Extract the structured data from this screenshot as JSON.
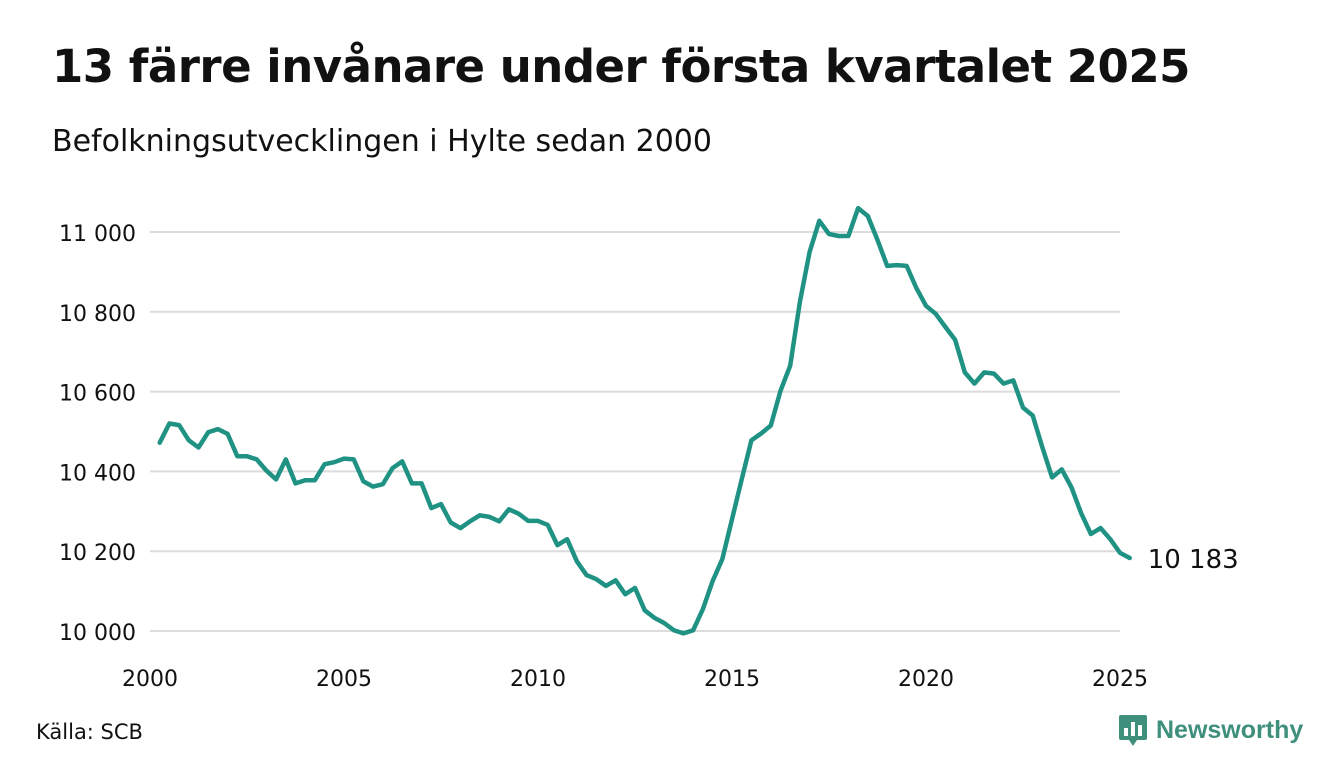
{
  "header": {
    "title": "13 färre invånare under första kvartalet 2025",
    "subtitle": "Befolkningsutvecklingen i Hylte sedan 2000"
  },
  "footer": {
    "source": "Källa: SCB",
    "brand": "Newsworthy"
  },
  "colors": {
    "line": "#1f9284",
    "grid": "#dcdcdc",
    "brand": "#3f8f7d"
  },
  "chart_data": {
    "type": "line",
    "title": "13 färre invånare under första kvartalet 2025",
    "subtitle": "Befolkningsutvecklingen i Hylte sedan 2000",
    "xlabel": "",
    "ylabel": "",
    "xlim": [
      2000,
      2025
    ],
    "ylim": [
      10000,
      11000
    ],
    "x_ticks": [
      2000,
      2005,
      2010,
      2015,
      2020,
      2025
    ],
    "x_tick_labels": [
      "2000",
      "2005",
      "2010",
      "2015",
      "2020",
      "2025"
    ],
    "y_ticks": [
      10000,
      10200,
      10400,
      10600,
      10800,
      11000
    ],
    "y_tick_labels": [
      "10 000",
      "10 200",
      "10 400",
      "10 600",
      "10 800",
      "11 000"
    ],
    "grid": true,
    "end_label": "10 183",
    "series": [
      {
        "x": [
          2000.25,
          2000.5,
          2000.75,
          2001.0,
          2001.25,
          2001.5,
          2001.75,
          2002.0,
          2002.25,
          2002.5,
          2002.75,
          2003.0,
          2003.25,
          2003.5,
          2003.75,
          2004.0,
          2004.25,
          2004.5,
          2004.75,
          2005.0,
          2005.25,
          2005.5,
          2005.75,
          2006.0,
          2006.25,
          2006.5,
          2006.75,
          2007.0,
          2007.25,
          2007.5,
          2007.75,
          2008.0,
          2008.25,
          2008.5,
          2008.75,
          2009.0,
          2009.25,
          2009.5,
          2009.75,
          2010.0,
          2010.25,
          2010.5,
          2010.75,
          2011.0,
          2011.25,
          2011.5,
          2011.75,
          2012.0,
          2012.25,
          2012.5,
          2012.75,
          2013.0,
          2013.25,
          2013.5,
          2013.75,
          2014.0,
          2014.25,
          2014.5,
          2014.75,
          2015.0,
          2015.25,
          2015.5,
          2015.75,
          2016.0,
          2016.25,
          2016.5,
          2016.75,
          2017.0,
          2017.25,
          2017.5,
          2017.75,
          2018.0,
          2018.25,
          2018.5,
          2018.75,
          2019.0,
          2019.25,
          2019.5,
          2019.75,
          2020.0,
          2020.25,
          2020.5,
          2020.75,
          2021.0,
          2021.25,
          2021.5,
          2021.75,
          2022.0,
          2022.25,
          2022.5,
          2022.75,
          2023.0,
          2023.25,
          2023.5,
          2023.75,
          2024.0,
          2024.25,
          2024.5,
          2024.75,
          2025.0,
          2025.25
        ],
        "values": [
          10472,
          10520,
          10516,
          10478,
          10460,
          10498,
          10506,
          10494,
          10438,
          10438,
          10430,
          10402,
          10380,
          10430,
          10370,
          10378,
          10378,
          10418,
          10423,
          10432,
          10430,
          10375,
          10362,
          10368,
          10408,
          10425,
          10370,
          10370,
          10308,
          10318,
          10272,
          10258,
          10275,
          10290,
          10286,
          10275,
          10305,
          10294,
          10276,
          10276,
          10266,
          10215,
          10230,
          10175,
          10140,
          10130,
          10113,
          10127,
          10092,
          10108,
          10052,
          10033,
          10020,
          10002,
          9994,
          10002,
          10055,
          10125,
          10180,
          10280,
          10380,
          10478,
          10495,
          10515,
          10602,
          10665,
          10825,
          10950,
          11028,
          10995,
          10990,
          10990,
          11060,
          11040,
          10980,
          10915,
          10917,
          10915,
          10860,
          10815,
          10795,
          10762,
          10730,
          10648,
          10620,
          10648,
          10645,
          10620,
          10628,
          10560,
          10540,
          10460,
          10385,
          10405,
          10360,
          10295,
          10243,
          10258,
          10230,
          10196,
          10183
        ]
      }
    ]
  }
}
